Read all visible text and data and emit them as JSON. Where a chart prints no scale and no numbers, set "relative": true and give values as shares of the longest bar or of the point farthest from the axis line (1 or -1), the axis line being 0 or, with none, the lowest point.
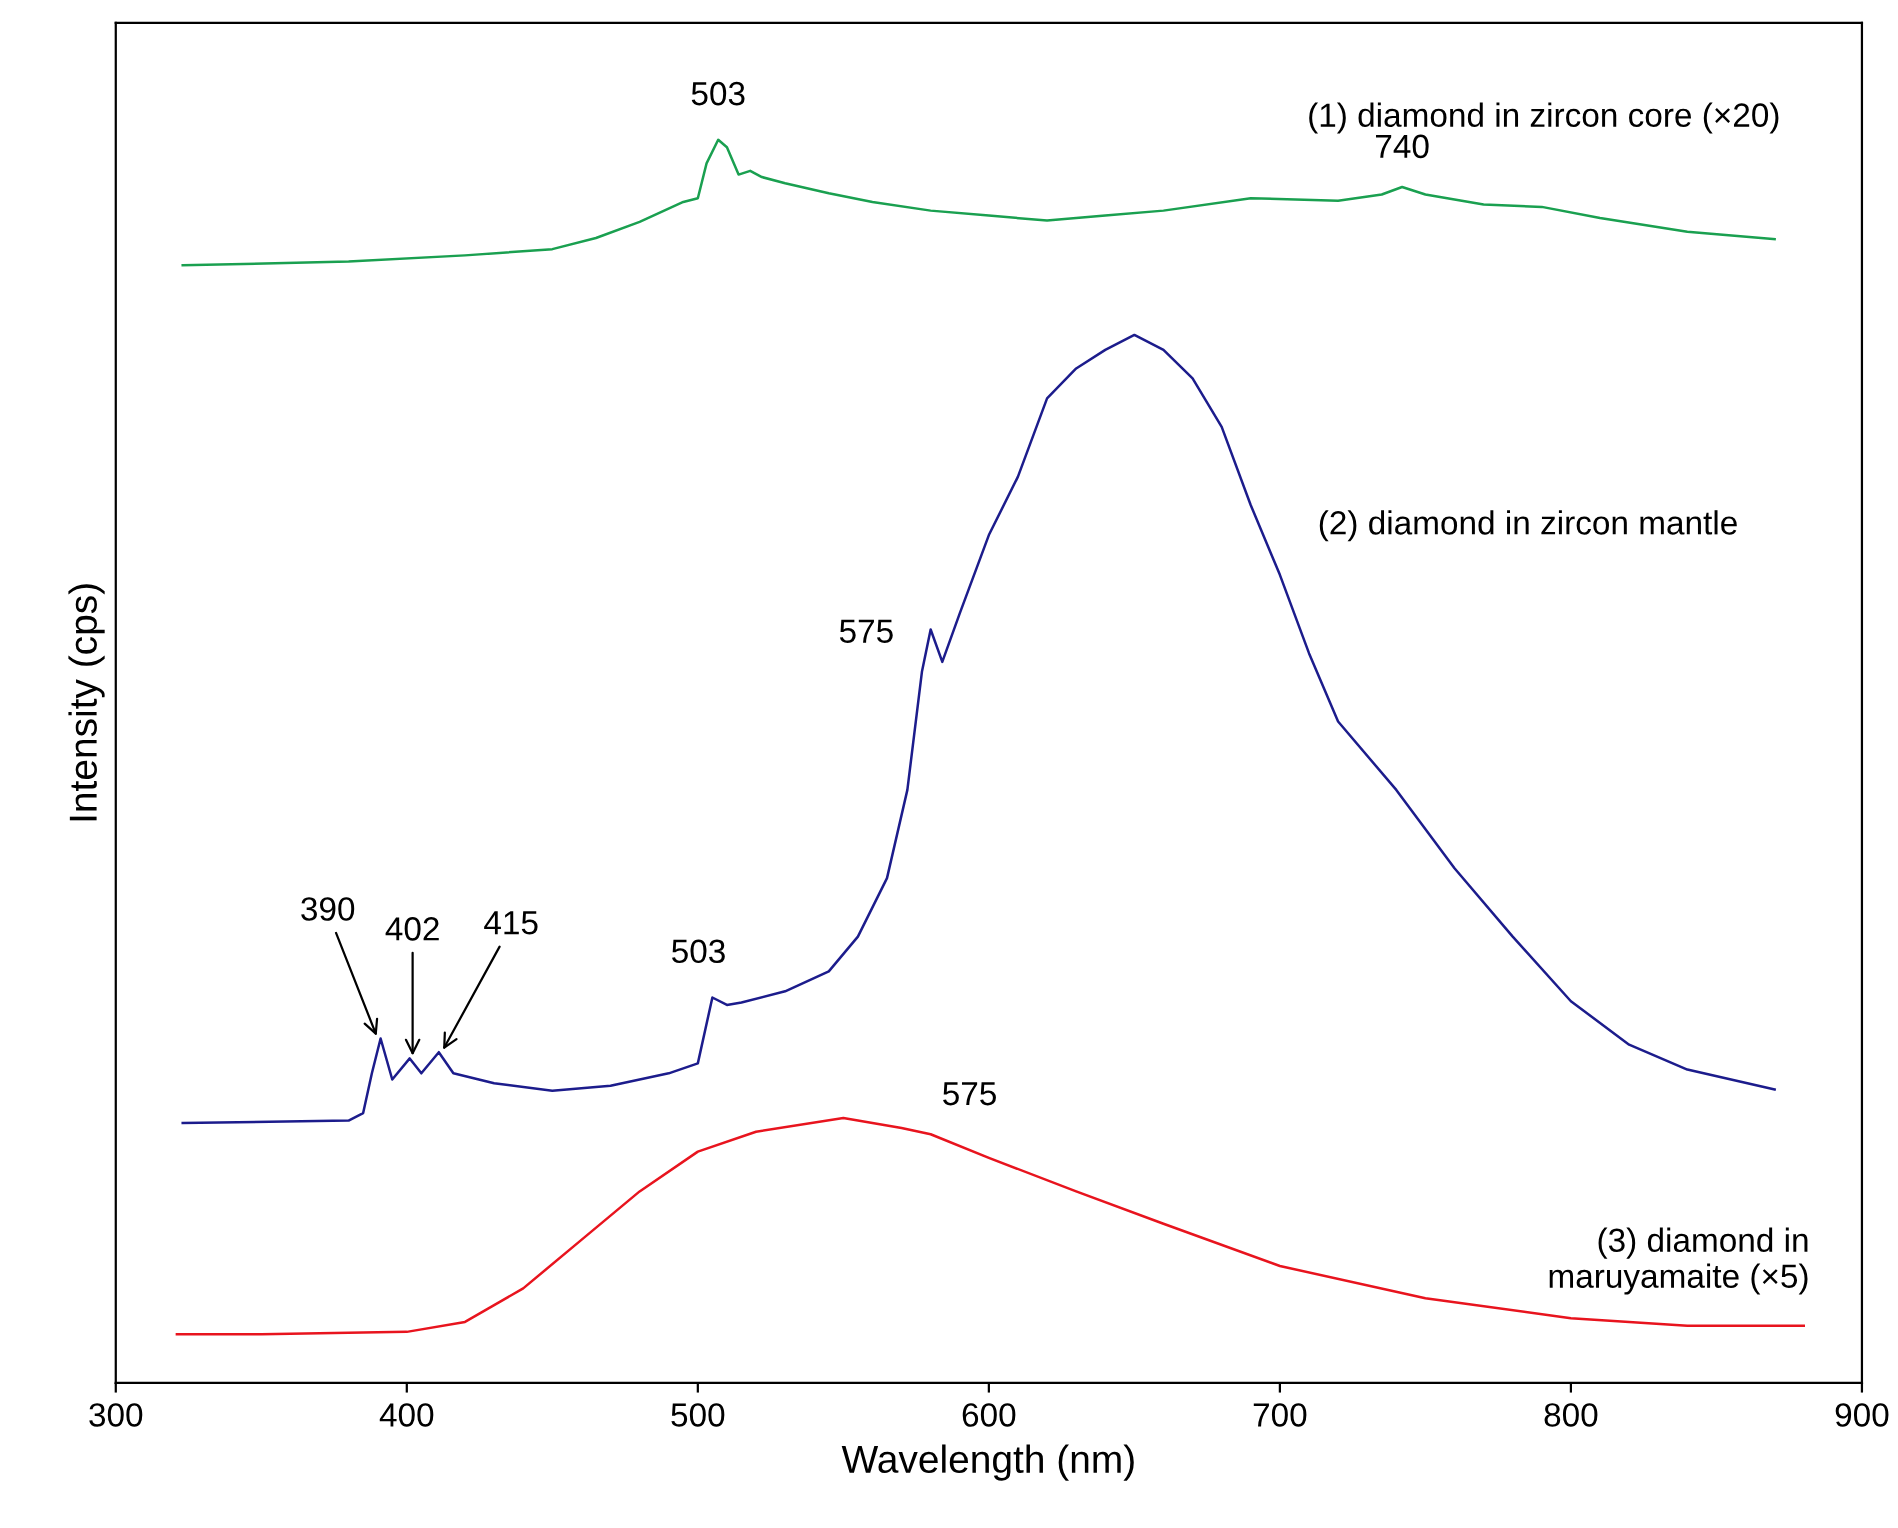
{
  "chart_data": {
    "type": "line",
    "relative": true,
    "xlabel": "Wavelength (nm)",
    "ylabel": "Intensity (cps)",
    "xlim": [
      300,
      900
    ],
    "xticks": [
      300,
      400,
      500,
      600,
      700,
      800,
      900
    ],
    "grid": false,
    "marker": "none",
    "line_style": "solid",
    "series": [
      {
        "name": "(1) diamond in zircon core (×20)",
        "color": "#1aa050",
        "x": [
          323,
          380,
          420,
          450,
          465,
          480,
          495,
          500,
          503,
          507,
          510,
          514,
          518,
          522,
          530,
          545,
          560,
          580,
          600,
          620,
          640,
          660,
          690,
          720,
          735,
          742,
          750,
          770,
          790,
          810,
          840,
          870
        ],
        "values": [
          0.899,
          0.902,
          0.907,
          0.912,
          0.921,
          0.934,
          0.95,
          0.953,
          0.981,
          1.0,
          0.994,
          0.972,
          0.975,
          0.97,
          0.965,
          0.957,
          0.95,
          0.943,
          0.939,
          0.935,
          0.939,
          0.943,
          0.953,
          0.951,
          0.956,
          0.962,
          0.956,
          0.948,
          0.946,
          0.937,
          0.926,
          0.92
        ]
      },
      {
        "name": "(2) diamond in zircon mantle",
        "color": "#1c1c8c",
        "x": [
          323,
          380,
          385,
          388,
          391,
          395,
          401,
          405,
          411,
          416,
          430,
          450,
          470,
          490,
          500,
          505,
          510,
          515,
          530,
          545,
          555,
          565,
          572,
          577,
          580,
          584,
          590,
          600,
          610,
          620,
          630,
          640,
          650,
          660,
          670,
          680,
          690,
          700,
          710,
          720,
          740,
          760,
          780,
          800,
          820,
          840,
          870
        ],
        "values": [
          0.209,
          0.211,
          0.217,
          0.249,
          0.277,
          0.244,
          0.261,
          0.249,
          0.266,
          0.249,
          0.241,
          0.235,
          0.239,
          0.249,
          0.257,
          0.31,
          0.304,
          0.306,
          0.315,
          0.331,
          0.359,
          0.406,
          0.477,
          0.572,
          0.606,
          0.58,
          0.619,
          0.682,
          0.729,
          0.792,
          0.816,
          0.831,
          0.843,
          0.831,
          0.808,
          0.769,
          0.706,
          0.65,
          0.587,
          0.532,
          0.477,
          0.414,
          0.359,
          0.307,
          0.272,
          0.252,
          0.236
        ]
      },
      {
        "name": "(3) diamond in\nmaruyamaite (×5)",
        "color": "#e8141e",
        "x": [
          321,
          350,
          400,
          420,
          440,
          460,
          480,
          500,
          520,
          550,
          570,
          580,
          600,
          630,
          660,
          700,
          750,
          800,
          840,
          880
        ],
        "values": [
          0.039,
          0.039,
          0.041,
          0.049,
          0.076,
          0.115,
          0.154,
          0.186,
          0.202,
          0.213,
          0.205,
          0.2,
          0.181,
          0.154,
          0.128,
          0.094,
          0.068,
          0.052,
          0.046,
          0.046
        ]
      }
    ],
    "annotations": [
      {
        "text": "503",
        "x": 507,
        "y": 1.0
      },
      {
        "text": "740",
        "x": 742,
        "y": 0.962
      },
      {
        "text": "575",
        "x": 577,
        "y": 0.572
      },
      {
        "text": "503",
        "x": 505,
        "y": 0.31
      },
      {
        "text": "390",
        "x": 390,
        "y": 0.277
      },
      {
        "text": "402",
        "x": 402,
        "y": 0.261
      },
      {
        "text": "415",
        "x": 412,
        "y": 0.266
      },
      {
        "text": "575",
        "x": 580,
        "y": 0.2
      }
    ]
  }
}
